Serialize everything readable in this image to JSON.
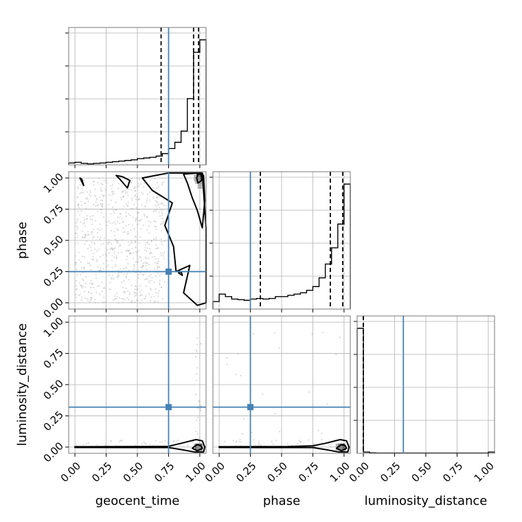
{
  "chart_data": {
    "type": "corner",
    "parameters": [
      "geocent_time",
      "phase",
      "luminosity_distance"
    ],
    "axis_ticks": [
      "0.00",
      "0.25",
      "0.50",
      "0.75",
      "1.00"
    ],
    "axis_range": [
      -0.05,
      1.05
    ],
    "grid": true,
    "colors": {
      "truth": "#4682b4",
      "hist": "#000000",
      "grid": "#b0b0b0",
      "frame": "#777777",
      "points": "#999999"
    },
    "truths": {
      "geocent_time": 0.75,
      "phase": 0.25,
      "luminosity_distance": 0.32
    },
    "quantiles": {
      "geocent_time": [
        0.69,
        0.95,
        0.99
      ],
      "phase": [
        0.33,
        0.89,
        0.99
      ],
      "luminosity_distance": [
        0.0,
        0.0,
        0.0
      ]
    },
    "histograms": {
      "geocent_time": {
        "edges": [
          -0.05,
          0.0,
          0.05,
          0.1,
          0.15,
          0.2,
          0.25,
          0.3,
          0.35,
          0.4,
          0.45,
          0.5,
          0.55,
          0.6,
          0.65,
          0.7,
          0.75,
          0.8,
          0.85,
          0.9,
          0.95,
          1.0,
          1.05
        ],
        "counts": [
          0.015,
          0.02,
          0.012,
          0.008,
          0.012,
          0.015,
          0.02,
          0.025,
          0.03,
          0.035,
          0.04,
          0.05,
          0.055,
          0.06,
          0.07,
          0.09,
          0.13,
          0.18,
          0.27,
          0.53,
          0.9,
          1.0
        ]
      },
      "phase": {
        "edges": [
          -0.05,
          0.0,
          0.05,
          0.1,
          0.15,
          0.2,
          0.25,
          0.3,
          0.35,
          0.4,
          0.45,
          0.5,
          0.55,
          0.6,
          0.65,
          0.7,
          0.75,
          0.8,
          0.85,
          0.9,
          0.95,
          1.0,
          1.05
        ],
        "counts": [
          0.06,
          0.12,
          0.1,
          0.08,
          0.075,
          0.07,
          0.08,
          0.085,
          0.08,
          0.085,
          0.1,
          0.1,
          0.11,
          0.12,
          0.13,
          0.15,
          0.18,
          0.25,
          0.36,
          0.49,
          0.68,
          1.0
        ]
      },
      "luminosity_distance": {
        "edges": [
          -0.05,
          0.0,
          0.05,
          0.1,
          0.15,
          0.2,
          0.25,
          0.3,
          0.35,
          0.4,
          0.45,
          0.5,
          0.55,
          0.6,
          0.65,
          0.7,
          0.75,
          0.8,
          0.85,
          0.9,
          0.95,
          1.0,
          1.05
        ],
        "counts": [
          1.0,
          0.01,
          0.004,
          0.002,
          0.002,
          0.002,
          0.002,
          0.002,
          0.002,
          0.002,
          0.002,
          0.002,
          0.002,
          0.002,
          0.002,
          0.002,
          0.002,
          0.002,
          0.002,
          0.002,
          0.002,
          0.01
        ]
      }
    },
    "panels_2d": [
      {
        "x": "geocent_time",
        "y": "phase",
        "contours": [
          [
            [
              0.985,
              0.96
            ],
            [
              1.015,
              0.98
            ],
            [
              1.01,
              1.03
            ],
            [
              0.985,
              1.03
            ],
            [
              0.975,
              1.0
            ]
          ],
          [
            [
              0.87,
              1.03
            ],
            [
              0.98,
              1.04
            ],
            [
              1.03,
              1.02
            ],
            [
              1.04,
              0.82
            ],
            [
              1.02,
              0.6
            ],
            [
              0.98,
              0.74
            ],
            [
              0.94,
              0.84
            ],
            [
              0.9,
              0.96
            ]
          ],
          [
            [
              0.54,
              1.0
            ],
            [
              0.75,
              1.04
            ],
            [
              1.02,
              1.04
            ],
            [
              1.05,
              0.6
            ],
            [
              1.05,
              0.0
            ],
            [
              0.98,
              -0.02
            ],
            [
              0.87,
              0.08
            ],
            [
              0.92,
              0.3
            ],
            [
              0.81,
              0.25
            ],
            [
              0.79,
              0.45
            ],
            [
              0.72,
              0.62
            ],
            [
              0.78,
              0.8
            ],
            [
              0.62,
              0.9
            ]
          ],
          [
            [
              0.42,
              0.92
            ],
            [
              0.36,
              0.99
            ],
            [
              0.33,
              1.02
            ],
            [
              0.38,
              1.01
            ],
            [
              0.44,
              0.98
            ]
          ],
          [
            [
              0.055,
              0.99
            ],
            [
              0.07,
              0.94
            ],
            [
              0.04,
              1.0
            ]
          ],
          [
            [
              0.83,
              0.24
            ],
            [
              0.86,
              0.22
            ],
            [
              0.85,
              0.25
            ]
          ]
        ],
        "dense": [
          [
            1.0,
            1.01
          ],
          [
            0.99,
            0.98
          ],
          [
            0.98,
            1.0
          ],
          [
            1.01,
            0.94
          ]
        ],
        "scatter_region": [
          [
            0.0,
            0.72
          ],
          [
            0.0,
            1.0
          ]
        ]
      },
      {
        "x": "geocent_time",
        "y": "luminosity_distance",
        "contours": [
          [
            [
              0.95,
              0.0
            ],
            [
              0.98,
              0.02
            ],
            [
              1.01,
              0.01
            ],
            [
              1.02,
              -0.01
            ],
            [
              0.98,
              -0.03
            ],
            [
              0.94,
              -0.01
            ]
          ],
          [
            [
              0.0,
              0.003
            ],
            [
              0.55,
              0.004
            ],
            [
              0.75,
              0.006
            ],
            [
              0.85,
              0.03
            ],
            [
              0.97,
              0.06
            ],
            [
              1.02,
              0.05
            ],
            [
              1.04,
              0.0
            ],
            [
              1.03,
              -0.04
            ],
            [
              0.96,
              -0.04
            ],
            [
              0.85,
              -0.02
            ],
            [
              0.75,
              -0.004
            ],
            [
              0.55,
              -0.004
            ],
            [
              0.0,
              -0.003
            ]
          ]
        ],
        "dense": [
          [
            0.99,
            0.0
          ],
          [
            1.0,
            -0.005
          ],
          [
            0.98,
            0.0
          ]
        ],
        "scatter_region": [
          [
            0.0,
            1.0
          ],
          [
            0.0,
            0.06
          ]
        ]
      },
      {
        "x": "phase",
        "y": "luminosity_distance",
        "contours": [
          [
            [
              0.95,
              0.0
            ],
            [
              0.98,
              0.02
            ],
            [
              1.01,
              0.01
            ],
            [
              1.02,
              -0.01
            ],
            [
              0.98,
              -0.03
            ],
            [
              0.94,
              -0.01
            ]
          ],
          [
            [
              0.0,
              0.003
            ],
            [
              0.55,
              0.004
            ],
            [
              0.75,
              0.01
            ],
            [
              0.85,
              0.03
            ],
            [
              0.97,
              0.06
            ],
            [
              1.02,
              0.05
            ],
            [
              1.04,
              0.0
            ],
            [
              1.03,
              -0.04
            ],
            [
              0.96,
              -0.04
            ],
            [
              0.85,
              -0.02
            ],
            [
              0.75,
              -0.004
            ],
            [
              0.55,
              -0.004
            ],
            [
              0.0,
              -0.003
            ]
          ]
        ],
        "dense": [
          [
            0.98,
            0.0
          ],
          [
            0.96,
            0.0
          ],
          [
            0.99,
            -0.005
          ]
        ],
        "scatter_region": [
          [
            0.0,
            1.0
          ],
          [
            0.0,
            0.06
          ]
        ]
      }
    ]
  }
}
